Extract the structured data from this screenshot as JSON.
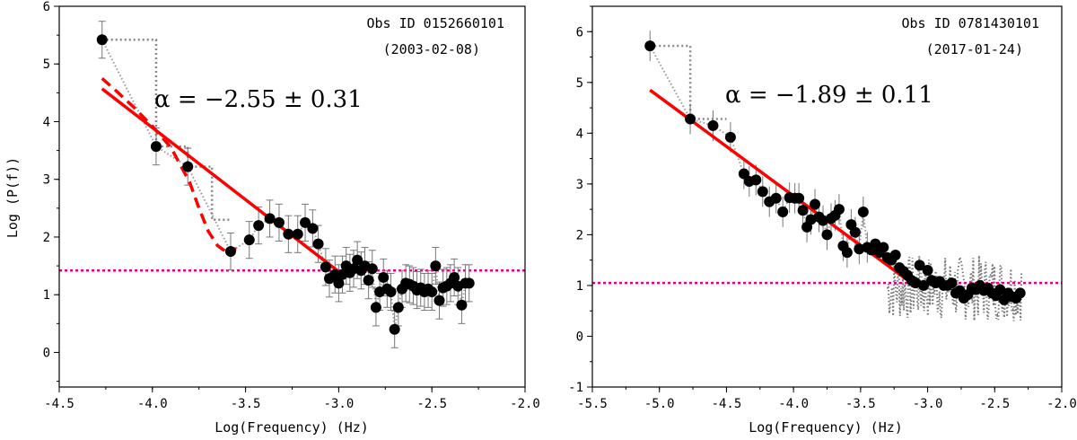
{
  "chart_data": [
    {
      "type": "scatter",
      "panel": "left",
      "title": "",
      "xlabel": "Log(Frequency) (Hz)",
      "ylabel": "Log (P(f))",
      "xlim": [
        -4.5,
        -2.0
      ],
      "ylim": [
        -0.6,
        6.0
      ],
      "xticks": [
        "-4.5",
        "-4.0",
        "-3.5",
        "-3.0",
        "-2.5",
        "-2.0"
      ],
      "yticks": [
        "0",
        "1",
        "2",
        "3",
        "4",
        "5",
        "6"
      ],
      "annotation_obs": "Obs ID 0152660101",
      "annotation_date": "(2003-02-08)",
      "alpha_text": "α = −2.55 ± 0.31",
      "noise_level": 1.42,
      "colors": {
        "points": "#000000",
        "fit": "#ff0000",
        "noise": "#e6007e",
        "steps": "#888888"
      },
      "points": {
        "x": [
          -4.27,
          -3.98,
          -3.81,
          -3.58,
          -3.48,
          -3.43,
          -3.37,
          -3.32,
          -3.27,
          -3.22,
          -3.18,
          -3.14,
          -3.11,
          -3.07,
          -3.05,
          -3.02,
          -3.0,
          -2.98,
          -2.96,
          -2.94,
          -2.92,
          -2.9,
          -2.88,
          -2.86,
          -2.84,
          -2.82,
          -2.8,
          -2.78,
          -2.76,
          -2.74,
          -2.72,
          -2.7,
          -2.68,
          -2.66,
          -2.64,
          -2.62,
          -2.6,
          -2.58,
          -2.56,
          -2.54,
          -2.52,
          -2.5,
          -2.48,
          -2.46,
          -2.44,
          -2.42,
          -2.4,
          -2.38,
          -2.36,
          -2.34,
          -2.32,
          -2.3
        ],
        "y": [
          5.42,
          3.57,
          3.22,
          1.75,
          1.95,
          2.2,
          2.32,
          2.25,
          2.05,
          2.05,
          2.25,
          2.15,
          1.88,
          1.48,
          1.28,
          1.35,
          1.2,
          1.35,
          1.5,
          1.38,
          1.45,
          1.6,
          1.42,
          1.5,
          1.25,
          1.45,
          0.78,
          1.05,
          1.3,
          1.1,
          1.05,
          0.4,
          0.78,
          1.1,
          1.2,
          1.18,
          1.15,
          1.08,
          1.12,
          1.05,
          1.1,
          1.05,
          1.5,
          0.9,
          1.12,
          1.15,
          1.2,
          1.3,
          1.15,
          0.82,
          1.2,
          1.2
        ],
        "yerr": [
          0.32,
          0.32,
          0.32,
          0.32,
          0.32,
          0.32,
          0.32,
          0.32,
          0.32,
          0.32,
          0.32,
          0.32,
          0.32,
          0.32,
          0.32,
          0.32,
          0.32,
          0.32,
          0.32,
          0.32,
          0.32,
          0.32,
          0.32,
          0.32,
          0.32,
          0.32,
          0.32,
          0.32,
          0.32,
          0.32,
          0.32,
          0.32,
          0.32,
          0.32,
          0.32,
          0.32,
          0.32,
          0.32,
          0.32,
          0.32,
          0.32,
          0.32,
          0.32,
          0.32,
          0.32,
          0.32,
          0.32,
          0.32,
          0.32,
          0.32,
          0.32,
          0.32
        ]
      },
      "fit_solid": {
        "x": [
          -4.27,
          -2.98
        ],
        "y": [
          4.57,
          1.35
        ]
      },
      "fit_dashed": {
        "x": [
          -4.27,
          -4.2,
          -4.1,
          -4.0,
          -3.9,
          -3.8,
          -3.75,
          -3.7,
          -3.65,
          -3.62,
          -3.6,
          -3.55
        ],
        "y": [
          4.75,
          4.55,
          4.25,
          3.92,
          3.55,
          2.95,
          2.5,
          2.1,
          1.85,
          1.78,
          1.75,
          1.8
        ]
      },
      "steps": {
        "x": [
          -4.27,
          -3.98,
          -3.98,
          -3.81,
          -3.81,
          -3.68,
          -3.68,
          -3.58
        ],
        "y": [
          5.42,
          5.42,
          3.57,
          3.57,
          3.22,
          3.22,
          2.3,
          2.3
        ]
      }
    },
    {
      "type": "scatter",
      "panel": "right",
      "title": "",
      "xlabel": "Log(Frequency) (Hz)",
      "ylabel": "",
      "xlim": [
        -5.5,
        -2.0
      ],
      "ylim": [
        -1.0,
        6.5
      ],
      "xticks": [
        "-5.5",
        "-5.0",
        "-4.5",
        "-4.0",
        "-3.5",
        "-3.0",
        "-2.5",
        "-2.0"
      ],
      "yticks": [
        "-1",
        "0",
        "1",
        "2",
        "3",
        "4",
        "5",
        "6"
      ],
      "annotation_obs": "Obs ID 0781430101",
      "annotation_date": "(2017-01-24)",
      "alpha_text": "α = −1.89 ± 0.11",
      "noise_level": 1.05,
      "colors": {
        "points": "#000000",
        "fit": "#ff0000",
        "noise": "#e6007e",
        "steps": "#888888"
      },
      "points": {
        "x": [
          -5.07,
          -4.77,
          -4.6,
          -4.47,
          -4.37,
          -4.33,
          -4.28,
          -4.23,
          -4.18,
          -4.13,
          -4.08,
          -4.03,
          -3.99,
          -3.96,
          -3.93,
          -3.9,
          -3.87,
          -3.84,
          -3.81,
          -3.78,
          -3.75,
          -3.72,
          -3.69,
          -3.66,
          -3.63,
          -3.6,
          -3.57,
          -3.54,
          -3.51,
          -3.48,
          -3.45,
          -3.42,
          -3.39,
          -3.36,
          -3.33,
          -3.3,
          -3.27,
          -3.24,
          -3.21,
          -3.18,
          -3.15,
          -3.12,
          -3.09,
          -3.06,
          -3.03,
          -3.0,
          -2.97,
          -2.94,
          -2.91,
          -2.88,
          -2.85,
          -2.82,
          -2.79,
          -2.76,
          -2.73,
          -2.7,
          -2.67,
          -2.64,
          -2.61,
          -2.58,
          -2.55,
          -2.52,
          -2.49,
          -2.46,
          -2.43,
          -2.4,
          -2.37,
          -2.34,
          -2.31
        ],
        "y": [
          5.72,
          4.28,
          4.15,
          3.92,
          3.2,
          3.05,
          3.08,
          2.85,
          2.65,
          2.72,
          2.45,
          2.73,
          2.72,
          2.72,
          2.48,
          2.15,
          2.3,
          2.6,
          2.35,
          2.28,
          2.0,
          2.32,
          2.38,
          2.5,
          1.78,
          1.65,
          2.2,
          2.05,
          1.72,
          2.45,
          1.75,
          1.7,
          1.82,
          1.65,
          1.75,
          1.55,
          1.5,
          1.6,
          1.35,
          1.28,
          1.2,
          1.1,
          1.05,
          1.4,
          1.0,
          1.3,
          1.1,
          1.05,
          1.08,
          1.0,
          1.0,
          1.05,
          0.85,
          0.9,
          0.75,
          0.82,
          0.95,
          0.92,
          1.0,
          0.9,
          0.95,
          0.85,
          0.8,
          0.92,
          0.72,
          0.85,
          0.78,
          0.75,
          0.85
        ]
      },
      "fit_solid": {
        "x": [
          -5.07,
          -3.08
        ],
        "y": [
          4.85,
          0.97
        ]
      },
      "steps": {
        "x": [
          -5.07,
          -4.77,
          -4.77,
          -4.5
        ],
        "y": [
          5.72,
          5.72,
          4.28,
          4.28
        ]
      },
      "noise_scatter_range": {
        "x": [
          -3.3,
          -2.3
        ],
        "y": [
          0.1,
          1.6
        ]
      }
    }
  ]
}
